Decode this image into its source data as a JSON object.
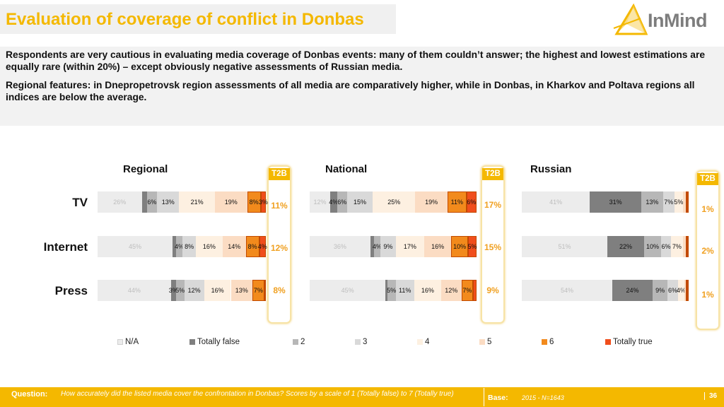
{
  "header": {
    "title": "Evaluation of coverage of conflict in Donbas",
    "logo_text": "InMind"
  },
  "lead": {
    "para1": "Respondents are very cautious in evaluating media coverage of Donbas events: many of them couldn’t answer; the highest and lowest estimations are equally rare (within 20%) – except obviously negative assessments of Russian media.",
    "para2": "Regional features: in Dnepropetrovsk region assessments of all media are comparatively higher, while in Donbas, in Kharkov and Poltava regions all indices are below the average."
  },
  "chart_data": {
    "type": "bar",
    "orientation": "horizontal-stacked-100",
    "categories": [
      "TV",
      "Internet",
      "Press"
    ],
    "legend_labels": [
      "N/A",
      "Totally false",
      "2",
      "3",
      "4",
      "5",
      "6",
      "Totally true"
    ],
    "legend_placement": "bottom",
    "series_colors": [
      "#ececec",
      "#7f7f7f",
      "#b7b7b7",
      "#d9d9d9",
      "#fdf0e1",
      "#fbdcc3",
      "#f28a1c",
      "#f04e1c"
    ],
    "t2b_label": "T2B",
    "panels": [
      {
        "title": "Regional",
        "rows": [
          {
            "values": [
              26,
              3,
              6,
              13,
              21,
              19,
              8,
              3
            ],
            "labels": [
              "26%",
              "",
              "6%",
              "13%",
              "21%",
              "19%",
              "8%",
              "3%"
            ],
            "t2b": "11%"
          },
          {
            "values": [
              45,
              2,
              4,
              8,
              16,
              14,
              8,
              4
            ],
            "labels": [
              "45%",
              "",
              "4%",
              "8%",
              "16%",
              "14%",
              "8%",
              "4%"
            ],
            "t2b": "12%"
          },
          {
            "values": [
              44,
              3,
              5,
              12,
              16,
              13,
              7,
              1
            ],
            "labels": [
              "44%",
              "3%",
              "5%",
              "12%",
              "16%",
              "13%",
              "7%",
              ""
            ],
            "t2b": "8%"
          }
        ]
      },
      {
        "title": "National",
        "rows": [
          {
            "values": [
              12,
              4,
              6,
              15,
              25,
              19,
              11,
              6
            ],
            "labels": [
              "12%",
              "4%",
              "6%",
              "15%",
              "25%",
              "19%",
              "11%",
              "6%"
            ],
            "t2b": "17%"
          },
          {
            "values": [
              36,
              2,
              4,
              9,
              17,
              16,
              10,
              5
            ],
            "labels": [
              "36%",
              "",
              "4%",
              "9%",
              "17%",
              "16%",
              "10%",
              "5%"
            ],
            "t2b": "15%"
          },
          {
            "values": [
              45,
              1,
              5,
              11,
              16,
              12,
              7,
              2
            ],
            "labels": [
              "45%",
              "",
              "5%",
              "11%",
              "16%",
              "12%",
              "7%",
              ""
            ],
            "t2b": "9%"
          }
        ]
      },
      {
        "title": "Russian",
        "rows": [
          {
            "values": [
              41,
              31,
              13,
              7,
              5,
              2,
              0.5,
              1
            ],
            "labels": [
              "41%",
              "31%",
              "13%",
              "7%",
              "5%",
              "",
              "",
              ""
            ],
            "t2b": "1%"
          },
          {
            "values": [
              51,
              22,
              10,
              6,
              7,
              2,
              0.5,
              1
            ],
            "labels": [
              "51%",
              "22%",
              "10%",
              "6%",
              "7%",
              "",
              "",
              ""
            ],
            "t2b": "2%"
          },
          {
            "values": [
              54,
              24,
              9,
              6,
              4,
              1,
              0.5,
              1
            ],
            "labels": [
              "54%",
              "24%",
              "9%",
              "6%",
              "4%",
              "",
              "",
              ""
            ],
            "t2b": "1%"
          }
        ]
      }
    ]
  },
  "footer": {
    "question_label": "Question:",
    "question_text": "How accurately did the listed media cover  the confrontation in Donbas? Scores by a scale of 1 (Totally false) to 7 (Totally true)",
    "base_label": "Base:",
    "base_text": "2015 - N=1643",
    "page_number": "36"
  }
}
